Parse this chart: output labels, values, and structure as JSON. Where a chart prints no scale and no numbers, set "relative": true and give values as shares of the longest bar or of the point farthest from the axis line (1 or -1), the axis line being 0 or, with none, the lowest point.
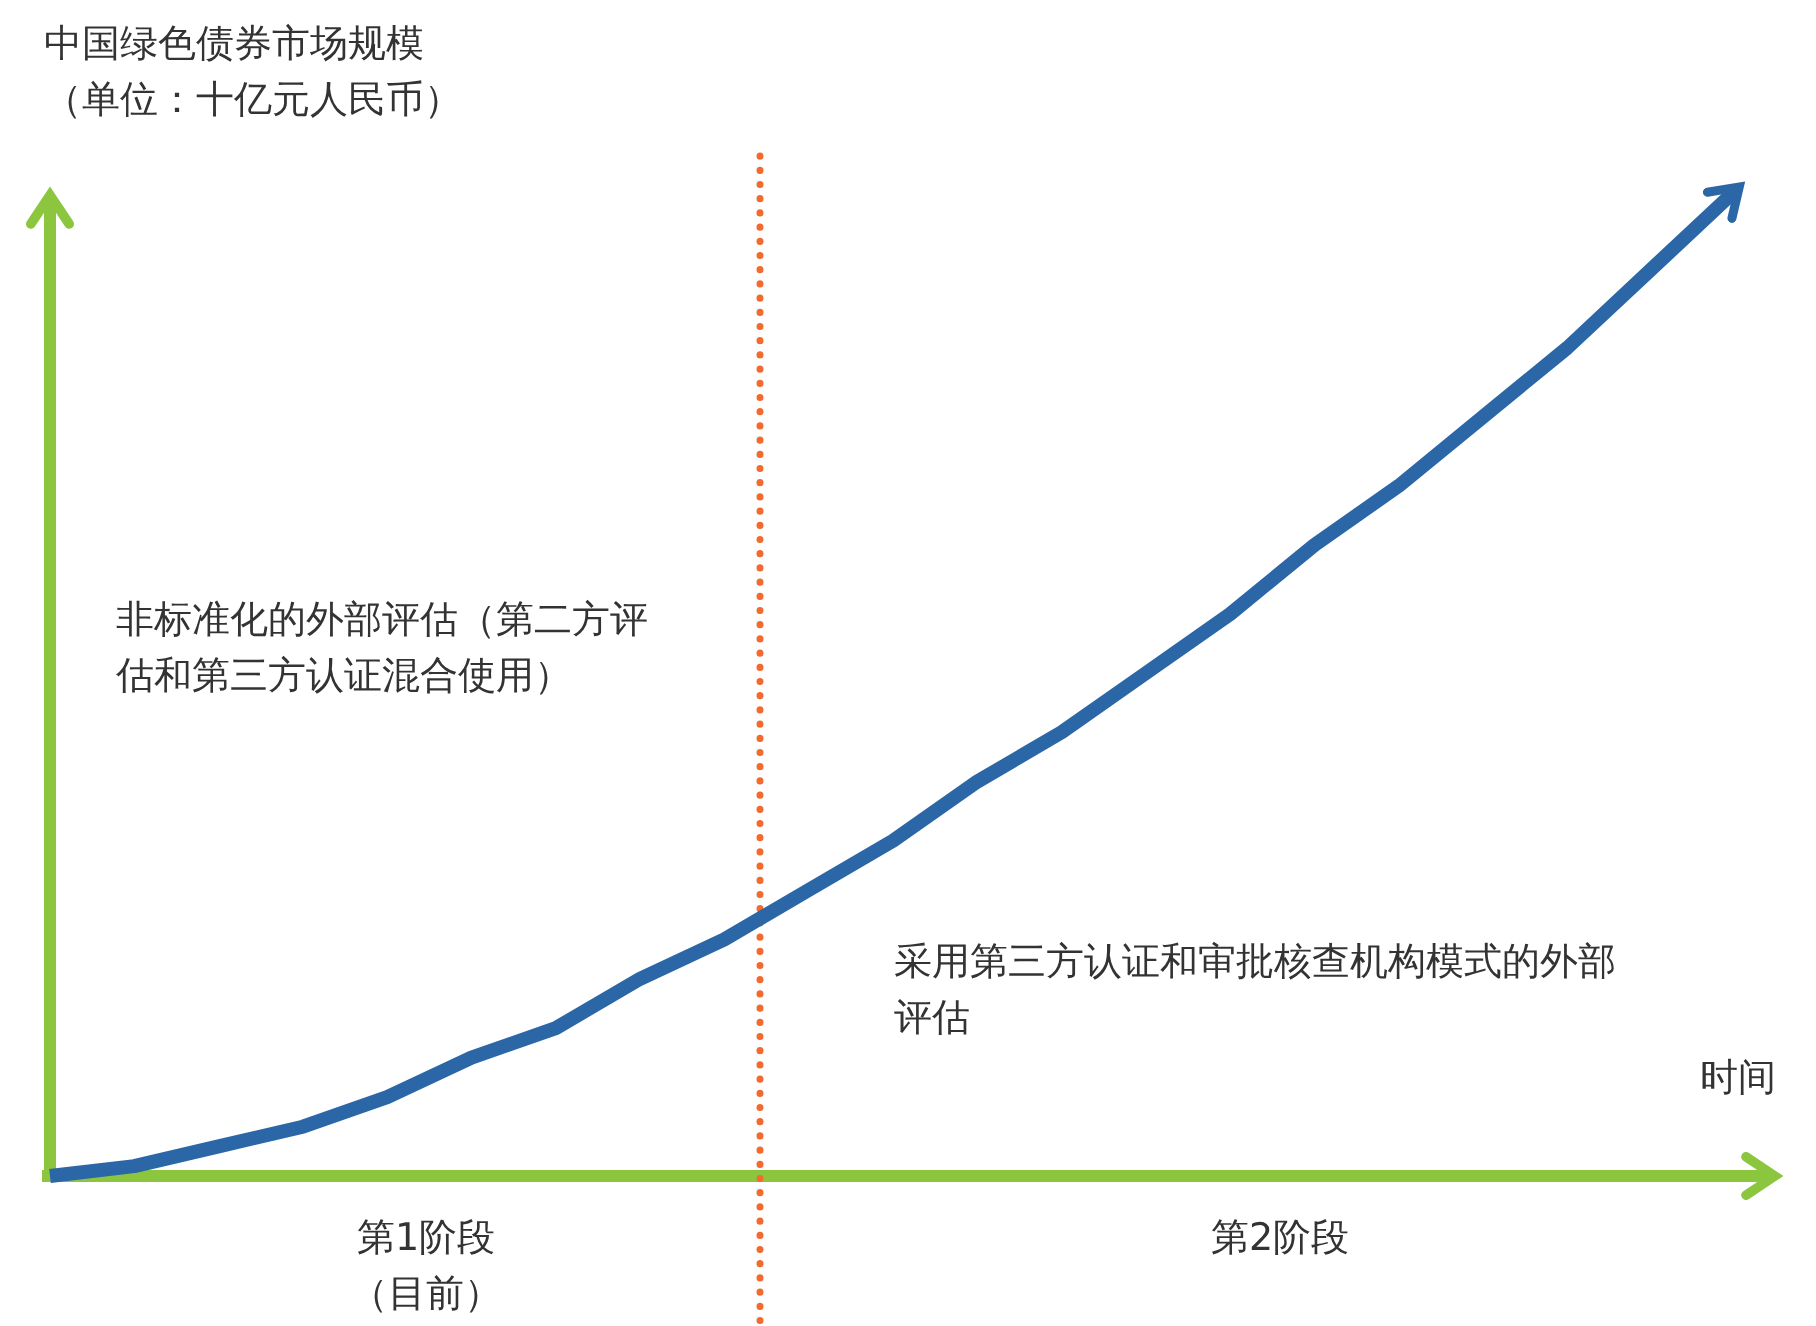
{
  "chart_data": {
    "type": "line",
    "relative": true,
    "xlabel": "时间",
    "ylabel": "中国绿色债券市场规模（单位：十亿元人民币）",
    "categories": [
      null,
      null,
      null,
      null,
      null,
      null,
      null,
      null,
      null,
      null,
      null,
      null,
      null,
      null,
      null,
      null,
      null,
      null,
      null,
      null,
      null
    ],
    "marker": "none",
    "line_style": "solid",
    "series": [
      {
        "color": "#2b67a6",
        "values": [
          0,
          0.01,
          0.03,
          0.05,
          0.08,
          0.12,
          0.15,
          0.2,
          0.24,
          0.29,
          0.34,
          0.4,
          0.45,
          0.51,
          0.57,
          0.64,
          0.7,
          0.77,
          0.84,
          0.92,
          1
        ]
      }
    ],
    "annotations": [
      "非标准化的外部评估（第二方评估和第三方认证混合使用）",
      "采用第三方认证和审批核查机构模式的外部评估",
      "第1阶段（目前）",
      "第2阶段"
    ]
  }
}
